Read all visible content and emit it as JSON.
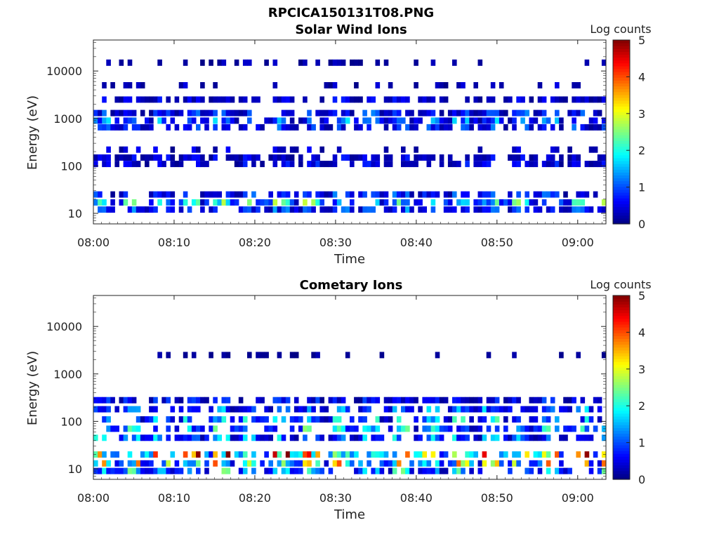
{
  "figure_title": "RPCICA150131T08.PNG",
  "colors": {
    "colormap": [
      "#00007f",
      "#0000ff",
      "#007fff",
      "#00ffff",
      "#7fff7f",
      "#ffff00",
      "#ff7f00",
      "#ff0000",
      "#7f0000"
    ]
  },
  "chart_data": [
    {
      "type": "heatmap",
      "title": "Solar Wind Ions",
      "xlabel": "Time",
      "ylabel": "Energy (eV)",
      "x_ticks": [
        "08:00",
        "08:10",
        "08:20",
        "08:30",
        "08:40",
        "08:50",
        "09:00"
      ],
      "x_range_minutes": [
        0,
        63.5
      ],
      "y_scale": "log",
      "y_ticks": [
        "10",
        "100",
        "1000",
        "10000"
      ],
      "y_range": [
        6,
        45000
      ],
      "colorbar": {
        "label": "Log counts",
        "ticks": [
          "0",
          "1",
          "2",
          "3",
          "4",
          "5"
        ],
        "range": [
          0,
          5
        ]
      },
      "bands": [
        {
          "energy": 12,
          "mean": 0.6
        },
        {
          "energy": 17,
          "mean": 1.1
        },
        {
          "energy": 25,
          "mean": 0.5
        },
        {
          "energy": 110,
          "mean": 0.35
        },
        {
          "energy": 150,
          "mean": 0.3
        },
        {
          "energy": 220,
          "mean": 0.25
        },
        {
          "energy": 650,
          "mean": 0.5
        },
        {
          "energy": 900,
          "mean": 0.7
        },
        {
          "energy": 1300,
          "mean": 0.5
        },
        {
          "energy": 2500,
          "mean": 0.3
        },
        {
          "energy": 5000,
          "mean": 0.2
        },
        {
          "energy": 15000,
          "mean": 0.15
        }
      ]
    },
    {
      "type": "heatmap",
      "title": "Cometary Ions",
      "xlabel": "Time",
      "ylabel": "Energy (eV)",
      "x_ticks": [
        "08:00",
        "08:10",
        "08:20",
        "08:30",
        "08:40",
        "08:50",
        "09:00"
      ],
      "x_range_minutes": [
        0,
        63.5
      ],
      "y_scale": "log",
      "y_ticks": [
        "10",
        "100",
        "1000",
        "10000"
      ],
      "y_range": [
        6,
        45000
      ],
      "colorbar": {
        "label": "Log counts",
        "ticks": [
          "0",
          "1",
          "2",
          "3",
          "4",
          "5"
        ],
        "range": [
          0,
          5
        ]
      },
      "bands": [
        {
          "energy": 9,
          "mean": 1.0
        },
        {
          "energy": 13,
          "mean": 1.6
        },
        {
          "energy": 20,
          "mean": 2.0
        },
        {
          "energy": 45,
          "mean": 0.8
        },
        {
          "energy": 70,
          "mean": 1.0
        },
        {
          "energy": 110,
          "mean": 0.9
        },
        {
          "energy": 180,
          "mean": 0.7
        },
        {
          "energy": 280,
          "mean": 0.4
        },
        {
          "energy": 2500,
          "mean": 0.1
        }
      ]
    }
  ]
}
